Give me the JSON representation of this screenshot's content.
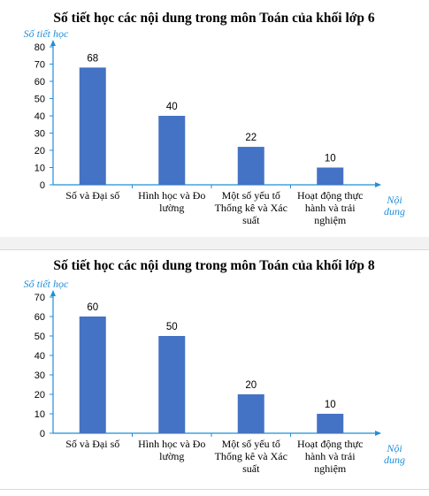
{
  "chart_data": [
    {
      "type": "bar",
      "title": "Số tiết học các nội dung trong môn Toán của khối lớp 6",
      "ylabel": "Số tiết học",
      "xlabel": [
        "Nội",
        "dung"
      ],
      "ylim": [
        0,
        80
      ],
      "yticks": [
        0,
        10,
        20,
        30,
        40,
        50,
        60,
        70,
        80
      ],
      "categories": [
        [
          "Số và Đại số"
        ],
        [
          "Hình học và Đo",
          "lường"
        ],
        [
          "Một số yếu tố",
          "Thống kê và Xác",
          "suất"
        ],
        [
          "Hoạt động thực",
          "hành và trải",
          "nghiệm"
        ]
      ],
      "values": [
        68,
        40,
        22,
        10
      ],
      "bar_color": "#4472c4",
      "axis_color": "#1f8fd8",
      "grid": false
    },
    {
      "type": "bar",
      "title": "Số tiết học các nội dung trong môn Toán của khối lớp 8",
      "ylabel": "Số tiết học",
      "xlabel": [
        "Nội",
        "dung"
      ],
      "ylim": [
        0,
        70
      ],
      "yticks": [
        0,
        10,
        20,
        30,
        40,
        50,
        60,
        70
      ],
      "categories": [
        [
          "Số và Đại số"
        ],
        [
          "Hình học và Đo",
          "lường"
        ],
        [
          "Một số yếu tố",
          "Thống kê và Xác",
          "suất"
        ],
        [
          "Hoạt động thực",
          "hành và trải",
          "nghiệm"
        ]
      ],
      "values": [
        60,
        50,
        20,
        10
      ],
      "bar_color": "#4472c4",
      "axis_color": "#1f8fd8",
      "grid": false
    }
  ]
}
